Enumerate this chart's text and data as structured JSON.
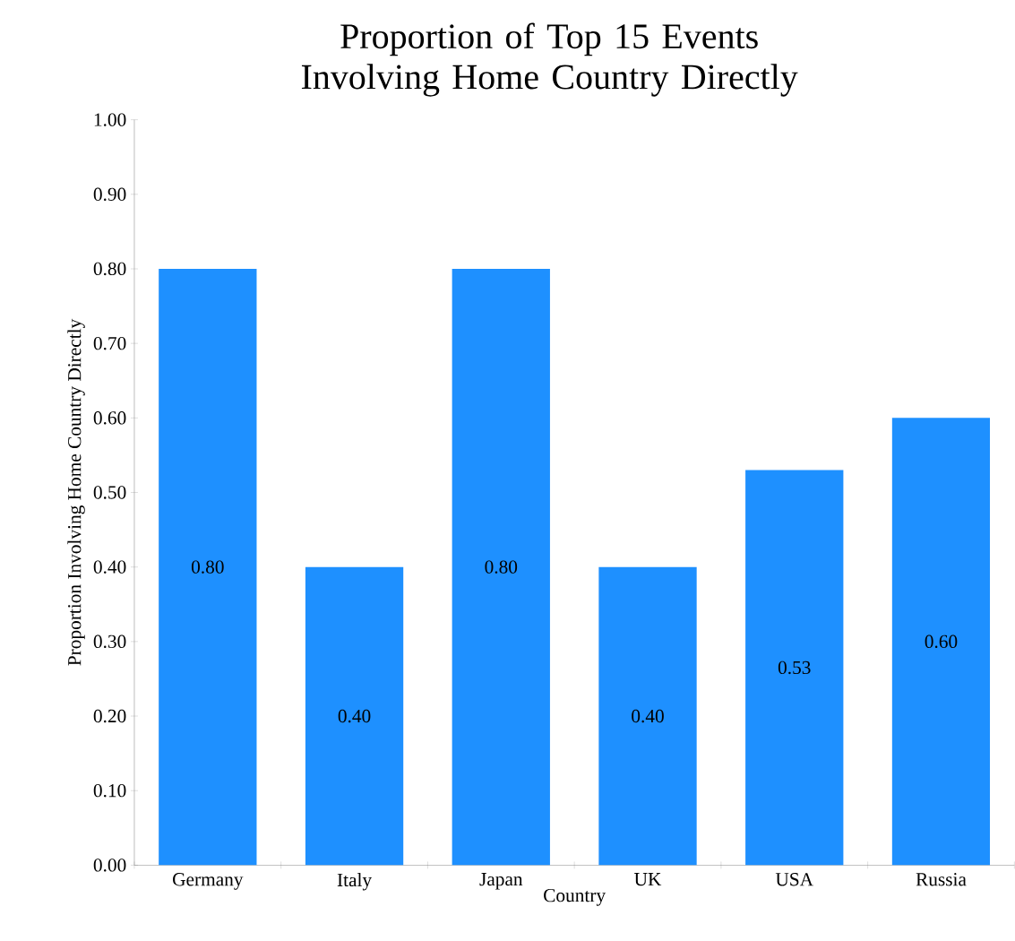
{
  "chart_data": {
    "type": "bar",
    "title": "Proportion of Top 15 Events Involving Home Country Directly",
    "xlabel": "Country",
    "ylabel": "Proportion Involving Home Country Directly",
    "categories": [
      "Germany",
      "Italy",
      "Japan",
      "UK",
      "USA",
      "Russia"
    ],
    "values": [
      0.8,
      0.4,
      0.8,
      0.4,
      0.53,
      0.6
    ],
    "value_labels": [
      "0.80",
      "0.40",
      "0.80",
      "0.40",
      "0.53",
      "0.60"
    ],
    "color": "#1e90ff",
    "ylim": [
      0,
      1
    ],
    "yticks": [
      {
        "value": 0,
        "label": "0.00"
      },
      {
        "value": 0.1,
        "label": "0.10"
      },
      {
        "value": 0.2,
        "label": "0.20"
      },
      {
        "value": 0.3,
        "label": "0.30"
      },
      {
        "value": 0.4,
        "label": "0.40"
      },
      {
        "value": 0.5,
        "label": "0.50"
      },
      {
        "value": 0.6,
        "label": "0.60"
      },
      {
        "value": 0.7,
        "label": "0.70"
      },
      {
        "value": 0.8,
        "label": "0.80"
      },
      {
        "value": 0.9,
        "label": "0.90"
      },
      {
        "value": 1,
        "label": "1.00"
      }
    ]
  }
}
